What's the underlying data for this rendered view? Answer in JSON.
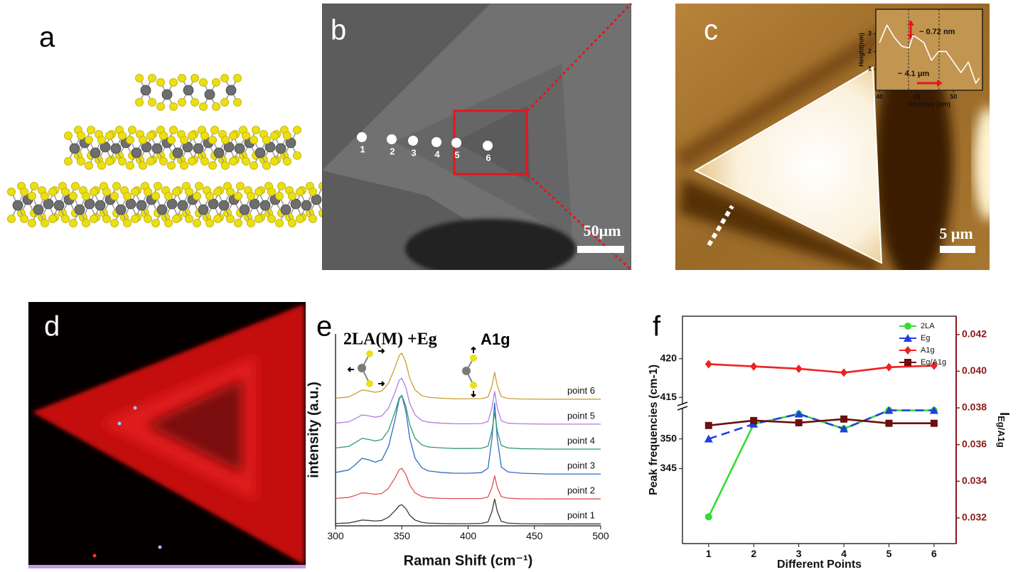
{
  "labels": {
    "a": "a",
    "b": "b",
    "c": "c",
    "d": "d",
    "e": "e",
    "f": "f"
  },
  "sem": {
    "points": [
      "1",
      "2",
      "3",
      "4",
      "5",
      "6"
    ],
    "scale_bar": "50μm"
  },
  "afm": {
    "scale_bar": "5 μm"
  },
  "chart_data": [
    {
      "type": "line",
      "xlabel": "Distance (μm)",
      "ylabel": "Height(nm)",
      "x": [
        40,
        41,
        42,
        43,
        44,
        44.5,
        45,
        46,
        47,
        48,
        49,
        50,
        51,
        52,
        53,
        53.5
      ],
      "values": [
        2.5,
        3.5,
        2.8,
        2.3,
        2.2,
        2.9,
        2.8,
        2.5,
        1.5,
        2.0,
        2.0,
        1.4,
        0.8,
        1.4,
        0.2,
        0.5
      ],
      "color": "#ffffff",
      "xlim": [
        39.5,
        53.9
      ],
      "ylim": [
        -0.2,
        4.4
      ],
      "xticks": [
        40,
        45,
        50
      ],
      "yticks": [
        1,
        2,
        3
      ],
      "frame": true,
      "annotations": [
        "~ 0.72 nm",
        "~ 4.1 μm"
      ]
    },
    {
      "type": "line",
      "xlabel": "Raman Shift (cm⁻¹)",
      "ylabel": "intensity (a.u.)",
      "annotations": [
        "2LA(M) +Eg",
        "A1g"
      ],
      "x": [
        300,
        310,
        315,
        320,
        325,
        330,
        335,
        340,
        345,
        348,
        350,
        353,
        356,
        360,
        365,
        370,
        380,
        390,
        400,
        410,
        415,
        418,
        420,
        422,
        425,
        430,
        440,
        460,
        480,
        500
      ],
      "xlim": [
        300,
        500
      ],
      "ylim": [
        0,
        100
      ],
      "xticks": [
        300,
        350,
        400,
        450,
        500
      ],
      "legend": "inline",
      "frame": false,
      "series": [
        {
          "name": "point 1",
          "color": "#3a3a3a",
          "values": [
            1.2,
            1.5,
            2.2,
            3,
            2.8,
            2.5,
            2.8,
            4.5,
            8,
            10.5,
            11,
            9,
            5.5,
            3,
            1.8,
            1.4,
            1.2,
            1.1,
            1.1,
            1.3,
            2,
            7.5,
            14,
            7.5,
            2.3,
            1.4,
            1.1,
            1,
            1,
            1
          ]
        },
        {
          "name": "point 2",
          "color": "#e0504f",
          "values": [
            14.3,
            14.8,
            15.9,
            17.2,
            16.9,
            16.4,
            16.9,
            19.6,
            25.2,
            29.2,
            30,
            26.8,
            21.2,
            17.2,
            15.3,
            14.6,
            14.3,
            14.2,
            14.2,
            14.2,
            15,
            20,
            26,
            20,
            15.2,
            14.4,
            14.1,
            14,
            14,
            14
          ]
        },
        {
          "name": "point 3",
          "color": "#2b6cc4",
          "values": [
            27.8,
            29.1,
            31.9,
            35.2,
            34.4,
            33.2,
            34.4,
            41.4,
            55.7,
            66,
            68,
            59.8,
            45.5,
            35.2,
            30.3,
            28.6,
            27.8,
            27.4,
            27.4,
            27.7,
            30,
            45.5,
            64,
            45.5,
            30.7,
            28.1,
            27.4,
            27,
            27,
            27
          ]
        },
        {
          "name": "point 4",
          "color": "#2f9a6c",
          "values": [
            40.6,
            41.4,
            43.4,
            45.6,
            45,
            44.2,
            45,
            49.8,
            59.6,
            66.6,
            68,
            62.4,
            52.6,
            45.6,
            42.2,
            41.1,
            40.6,
            40.3,
            40.3,
            40.4,
            41.5,
            49.5,
            59,
            49.5,
            41.9,
            40.6,
            40.2,
            40,
            40,
            40
          ]
        },
        {
          "name": "point 5",
          "color": "#b07ee0",
          "values": [
            53.5,
            54.2,
            55.9,
            57.8,
            57.3,
            56.6,
            57.3,
            61.4,
            69.8,
            75.8,
            77,
            72.2,
            63.8,
            57.8,
            54.9,
            54,
            53.5,
            53.2,
            53.2,
            53.3,
            54.4,
            61.5,
            70,
            61.5,
            54.7,
            53.5,
            53.2,
            53,
            53,
            53
          ]
        },
        {
          "name": "point 6",
          "color": "#c9a032",
          "values": [
            66.5,
            67.2,
            68.9,
            70.8,
            70.3,
            69.6,
            70.3,
            74.4,
            82.8,
            88.8,
            90,
            85.2,
            76.8,
            70.8,
            67.9,
            67,
            66.5,
            66.2,
            66.2,
            66.3,
            67.1,
            73,
            80,
            73,
            67.4,
            66.4,
            66.1,
            66,
            66,
            66
          ]
        }
      ]
    },
    {
      "type": "line",
      "xlabel": "Different Points",
      "ylabel": "Peak frequencies (cm-1)",
      "y2label": "I",
      "y2label_sub": "Eg/A1g",
      "y2color": "#8b1a1a",
      "x": [
        1,
        2,
        3,
        4,
        5,
        6
      ],
      "xlim": [
        0.42,
        6.49
      ],
      "xticks": [
        1,
        2,
        3,
        4,
        5,
        6
      ],
      "ylim": [
        332.4,
        425.5
      ],
      "ybreak": [
        355.1,
        414.1
      ],
      "yticks": [
        345,
        350,
        415,
        420
      ],
      "y2lim": [
        0.0306,
        0.043
      ],
      "y2ticks": [
        0.032,
        0.034,
        0.036,
        0.038,
        {
          "value": 0.04,
          "label": "0.040"
        },
        0.042
      ],
      "legend": "top-right",
      "frame": true,
      "series": [
        {
          "name": "2LA",
          "color": "#33dd33",
          "marker": "circle",
          "values": [
            336.9,
            352.5,
            354.2,
            351.7,
            354.8,
            354.8
          ]
        },
        {
          "name": "Eg",
          "color": "#1f3fe0",
          "marker": "triangle",
          "dash": true,
          "values": [
            350.0,
            352.5,
            354.2,
            351.7,
            354.8,
            354.8
          ]
        },
        {
          "name": "A1g",
          "color": "#ee2222",
          "marker": "diamond",
          "values": [
            419.3,
            419.0,
            418.7,
            418.2,
            418.9,
            419.1
          ]
        },
        {
          "name": "Eg/A1g",
          "color": "#6b0f0f",
          "marker": "square",
          "axis": "y2",
          "values": [
            0.03704,
            0.03731,
            0.03719,
            0.03739,
            0.03716,
            0.03716
          ]
        }
      ]
    }
  ]
}
